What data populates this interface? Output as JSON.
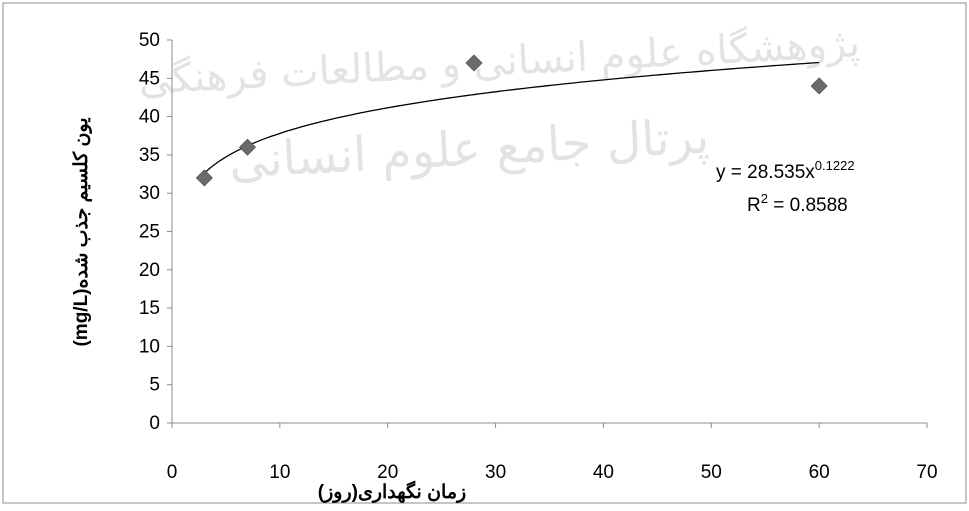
{
  "chart_data": {
    "type": "scatter",
    "xlabel": "زمان نگهداری(روز)",
    "ylabel": "یون کلسیم جذب شده(mg/L)",
    "xlim": [
      0,
      70
    ],
    "ylim": [
      0,
      50
    ],
    "xticks": [
      "0",
      "10",
      "20",
      "30",
      "40",
      "50",
      "60",
      "70"
    ],
    "yticks": [
      "0",
      "5",
      "10",
      "15",
      "20",
      "25",
      "30",
      "35",
      "40",
      "45",
      "50"
    ],
    "grid": false,
    "series": [
      {
        "x": [
          3,
          7,
          28,
          60
        ],
        "y": [
          32,
          36,
          47,
          44
        ],
        "marker": "diamond",
        "color": "#6b6b6b"
      }
    ],
    "trendline": {
      "type": "power",
      "a": 28.535,
      "b": 0.1222,
      "equation_prefix": "y = 28.535x",
      "equation_exponent": "0.1222",
      "r2_prefix": "R",
      "r2_superscript": "2",
      "r2_suffix": " = 0.8588",
      "color": "#000000"
    },
    "watermark": {
      "line1": "پژوهشگاه علوم انسانی و مطالعات فرهنگی",
      "line2": "پرتال جامع علوم انسانی"
    }
  }
}
